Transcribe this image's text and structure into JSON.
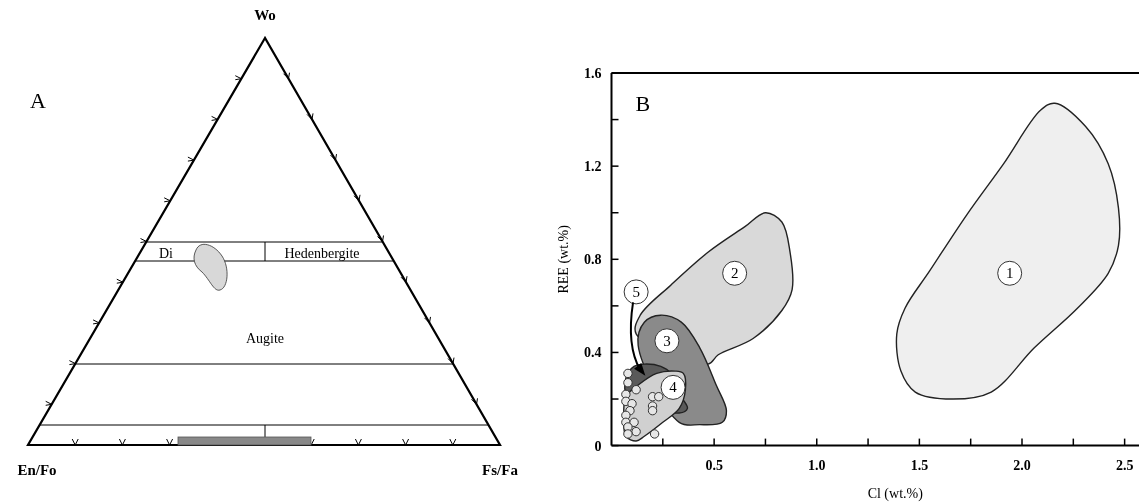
{
  "chart_data": [
    {
      "type": "other",
      "title": "A",
      "annotations": [
        "Wo",
        "En/Fo",
        "Fs/Fa",
        "Di",
        "Hedenbergite",
        "Augite"
      ]
    },
    {
      "type": "scatter",
      "title": "B",
      "xlabel": "Cl (wt.%)",
      "ylabel": "REE (wt.%)",
      "xlim": [
        0,
        2.57
      ],
      "ylim": [
        0,
        1.6
      ],
      "xticks": [
        {
          "value": 0.25,
          "label": null
        },
        0.5,
        {
          "value": 0.75,
          "label": null
        },
        {
          "value": 1,
          "label": "1.0"
        },
        {
          "value": 1.25,
          "label": null
        },
        1.5,
        {
          "value": 1.75,
          "label": null
        },
        {
          "value": 2,
          "label": "2.0"
        },
        {
          "value": 2.25,
          "label": null
        },
        2.5
      ],
      "yticks": [
        0,
        {
          "value": 0.2,
          "label": null
        },
        0.4,
        {
          "value": 0.6,
          "label": null
        },
        0.8,
        {
          "value": 1,
          "label": null
        },
        1.2,
        {
          "value": 1.4,
          "label": null
        },
        1.6
      ],
      "series": [
        {
          "type": "area",
          "color": "#d9d9d9",
          "x": [
            0.75,
            0.83,
            0.87,
            0.88,
            0.83,
            0.69,
            0.52,
            0.47,
            0.12,
            0.14,
            0.29,
            0.47,
            0.65
          ],
          "values": [
            1.0,
            0.96,
            0.83,
            0.67,
            0.58,
            0.46,
            0.39,
            0.35,
            0.48,
            0.56,
            0.69,
            0.83,
            0.94
          ]
        },
        {
          "type": "area",
          "color": "#8a8a8a",
          "x": [
            0.24,
            0.34,
            0.43,
            0.51,
            0.56,
            0.54,
            0.43,
            0.33,
            0.13,
            0.16
          ],
          "values": [
            0.56,
            0.53,
            0.42,
            0.26,
            0.15,
            0.1,
            0.09,
            0.1,
            0.43,
            0.53
          ]
        },
        {
          "type": "area",
          "color": "#5a5a5a",
          "x": [
            0.16,
            0.24,
            0.29,
            0.34,
            0.37,
            0.33,
            0.08,
            0.07,
            0.11
          ],
          "values": [
            0.35,
            0.34,
            0.31,
            0.21,
            0.16,
            0.14,
            0.21,
            0.29,
            0.34
          ]
        },
        {
          "type": "area",
          "color": "#d0d0d0",
          "x": [
            0.31,
            0.35,
            0.36,
            0.33,
            0.25,
            0.16,
            0.12,
            0.07,
            0.06,
            0.07,
            0.13,
            0.22
          ],
          "values": [
            0.32,
            0.31,
            0.24,
            0.16,
            0.1,
            0.04,
            0.02,
            0.04,
            0.12,
            0.21,
            0.26,
            0.31
          ]
        },
        {
          "type": "area",
          "color": "#efefef",
          "x": [
            2.16,
            2.31,
            2.42,
            2.47,
            2.47,
            2.42,
            2.27,
            2.06,
            1.85,
            1.66,
            1.48,
            1.41,
            1.39,
            1.43,
            1.55,
            1.73,
            1.91,
            2.09
          ],
          "values": [
            1.47,
            1.37,
            1.21,
            1.02,
            0.86,
            0.74,
            0.59,
            0.42,
            0.23,
            0.2,
            0.23,
            0.32,
            0.48,
            0.59,
            0.75,
            0.99,
            1.21,
            1.44
          ]
        },
        {
          "type": "scatter",
          "marker": "circle",
          "color": "#e6e6e6",
          "x": [
            0.08,
            0.08,
            0.12,
            0.07,
            0.07,
            0.1,
            0.09,
            0.07,
            0.07,
            0.11,
            0.08,
            0.12,
            0.21,
            0.2,
            0.23,
            0.2,
            0.2,
            0.08
          ],
          "values": [
            0.31,
            0.27,
            0.24,
            0.22,
            0.19,
            0.18,
            0.15,
            0.13,
            0.1,
            0.1,
            0.08,
            0.06,
            0.05,
            0.21,
            0.21,
            0.17,
            0.15,
            0.05
          ]
        }
      ],
      "annotations": [
        {
          "text": "1",
          "x": 1.94,
          "y": 0.74
        },
        {
          "text": "2",
          "x": 0.6,
          "y": 0.74
        },
        {
          "text": "3",
          "x": 0.27,
          "y": 0.45
        },
        {
          "text": "4",
          "x": 0.3,
          "y": 0.25
        },
        {
          "text": "5",
          "x": 0.12,
          "y": 0.66
        }
      ]
    }
  ]
}
